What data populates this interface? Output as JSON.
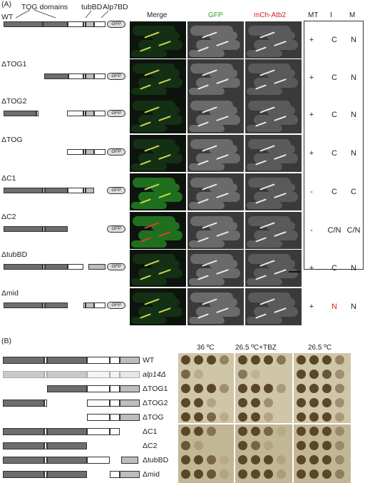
{
  "panelA": {
    "label": "(A)",
    "header": {
      "wt": "WT",
      "tog": "TOG domains",
      "tubbd": "tubBD",
      "alp7bd": "Alp7BD",
      "merge": "Merge",
      "gfp": "GFP",
      "mch": "mCh-Atb2",
      "mt": "MT",
      "i": "I",
      "m": "M"
    },
    "gfp_tag": "GFP",
    "rows": [
      {
        "name": "",
        "mt": "+",
        "i": "C",
        "m": "N"
      },
      {
        "name": "ΔTOG1",
        "mt": "+",
        "i": "C",
        "m": "N"
      },
      {
        "name": "ΔTOG2",
        "mt": "+",
        "i": "C",
        "m": "N"
      },
      {
        "name": "ΔTOG",
        "mt": "+",
        "i": "C",
        "m": "N"
      },
      {
        "name": "ΔC1",
        "mt": "-",
        "i": "C",
        "m": "C"
      },
      {
        "name": "ΔC2",
        "mt": "-",
        "i": "C/N",
        "m": "C/N"
      },
      {
        "name": "ΔtubBD",
        "mt": "+",
        "i": "C",
        "m": "N"
      },
      {
        "name": "Δmid",
        "mt": "+",
        "i": "N",
        "m": "N"
      }
    ],
    "colors": {
      "red_text": "#d62020",
      "gfp_green": "#2aa02a",
      "mch_red": "#d62020"
    }
  },
  "panelB": {
    "label": "(B)",
    "conditions": [
      "36 ºC",
      "26.5 ºC+TBZ",
      "26.5 ºC"
    ],
    "strains": [
      "WT",
      "alp14Δ",
      "ΔTOG1",
      "ΔTOG2",
      "ΔTOG",
      "ΔC1",
      "ΔC2",
      "ΔtubBD",
      "Δmid"
    ]
  }
}
